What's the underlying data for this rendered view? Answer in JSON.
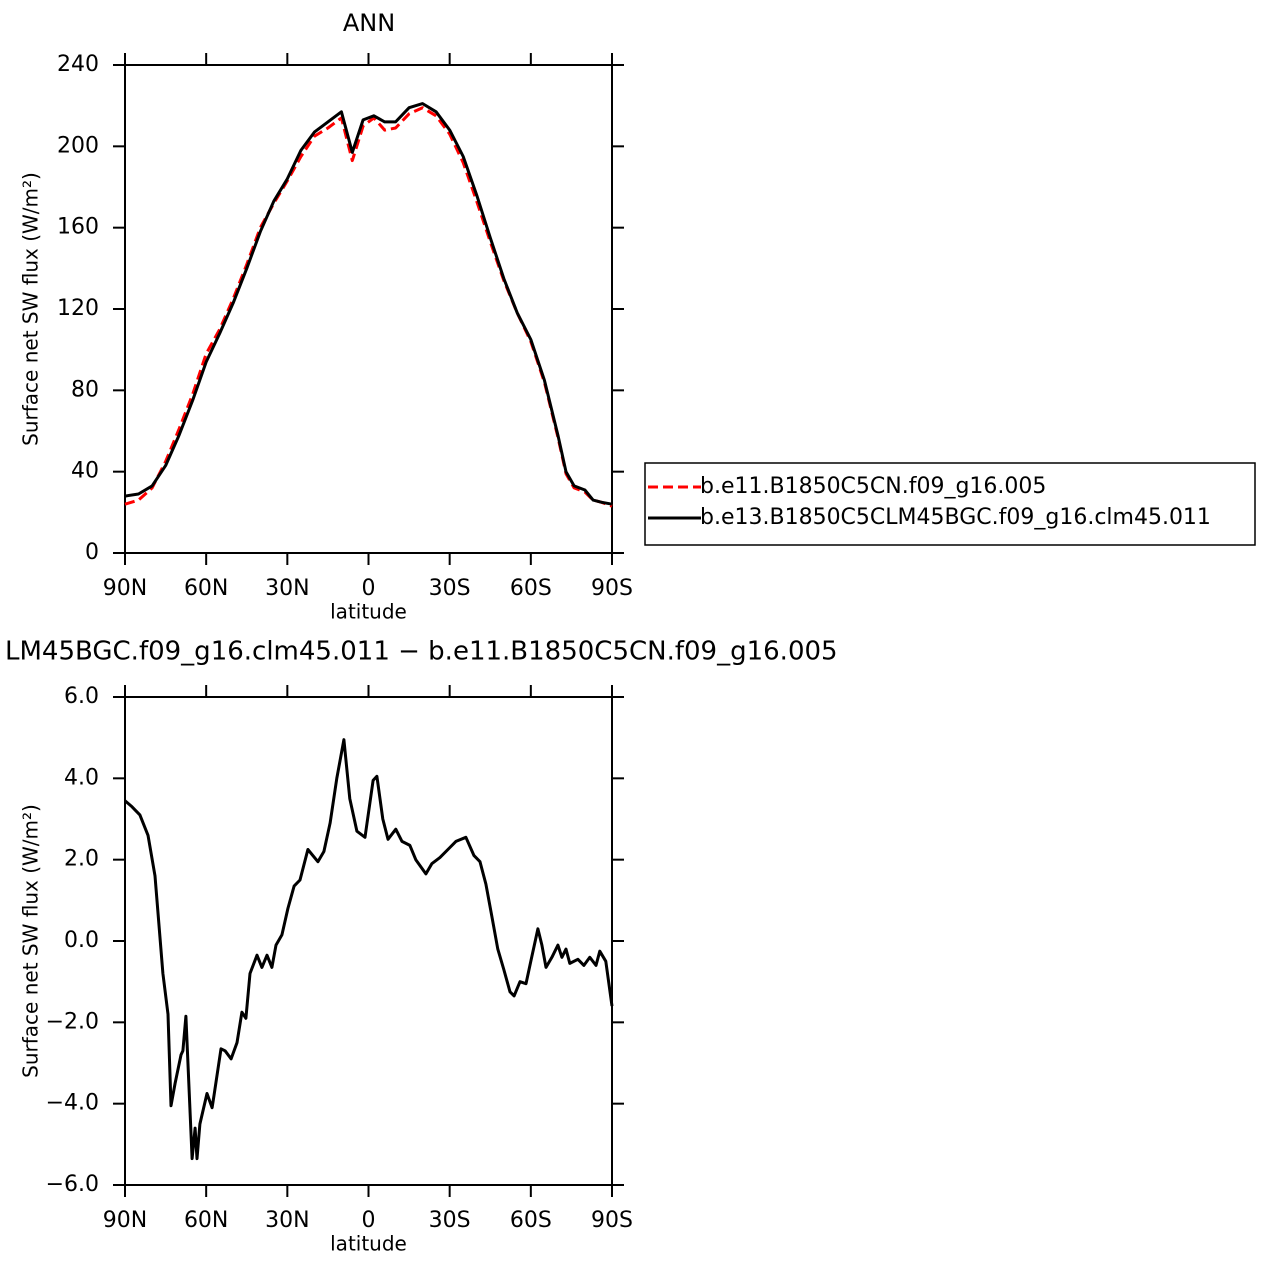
{
  "chart_data": [
    {
      "type": "line",
      "title": "ANN",
      "xlabel": "latitude",
      "ylabel": "Surface net SW flux (W/m²)",
      "x": [
        90,
        85,
        80,
        75,
        70,
        65,
        60,
        55,
        50,
        45,
        40,
        35,
        30,
        25,
        20,
        15,
        10,
        6,
        2,
        -2,
        -6,
        -10,
        -15,
        -20,
        -25,
        -30,
        -35,
        -40,
        -45,
        -50,
        -55,
        -60,
        -65,
        -70,
        -73,
        -76,
        -80,
        -83,
        -86,
        -90
      ],
      "series": [
        {
          "name": "b.e11.B1850C5CN.f09_g16.005",
          "color": "#ff0000",
          "dash": "dashed",
          "values": [
            24,
            26,
            32,
            45,
            61,
            78,
            98,
            110,
            125,
            142,
            160,
            172,
            183,
            195,
            205,
            209,
            214,
            193,
            210,
            214,
            208,
            209,
            216,
            219,
            215,
            206,
            192,
            173,
            153,
            134,
            118,
            104,
            84,
            57,
            39,
            32,
            30,
            26,
            25,
            23
          ]
        },
        {
          "name": "b.e13.B1850C5CLM45BGC.f09_g16.clm45.011",
          "color": "#000000",
          "dash": "solid",
          "values": [
            28,
            29,
            33,
            43,
            58,
            75,
            94,
            108,
            123,
            140,
            158,
            173,
            184,
            198,
            207,
            212,
            217,
            197,
            213,
            215,
            212,
            212,
            219,
            221,
            217,
            208,
            195,
            176,
            155,
            135,
            118,
            105,
            85,
            58,
            40,
            33,
            31,
            26,
            25,
            24
          ]
        }
      ],
      "xlim": [
        90,
        -90
      ],
      "xticks": [
        {
          "value": 90,
          "label": "90N"
        },
        {
          "value": 60,
          "label": "60N"
        },
        {
          "value": 30,
          "label": "30N"
        },
        0,
        {
          "value": -30,
          "label": "30S"
        },
        {
          "value": -60,
          "label": "60S"
        },
        {
          "value": -90,
          "label": "90S"
        }
      ],
      "ylim": [
        0,
        240
      ],
      "yticks": [
        0,
        40,
        80,
        120,
        160,
        200,
        240
      ],
      "legend": "right"
    },
    {
      "type": "line",
      "title": "LM45BGC.f09_g16.clm45.011 − b.e11.B1850C5CN.f09_g16.005",
      "xlabel": "latitude",
      "ylabel": "Surface net SW flux (W/m²)",
      "x": [
        90,
        87.4,
        84.5,
        81.5,
        78.9,
        76,
        74.1,
        73,
        71.5,
        69.3,
        68.6,
        67.5,
        65.2,
        64.1,
        63.4,
        62.3,
        59.7,
        57.8,
        57.1,
        54.5,
        53,
        50.8,
        48.6,
        46.8,
        45.3,
        43.8,
        41.2,
        39.4,
        37.5,
        35.7,
        34.2,
        32,
        29.8,
        27.5,
        25.3,
        22.4,
        18.7,
        16.5,
        14.2,
        11.7,
        9.1,
        6.9,
        4.3,
        1.3,
        -1.7,
        -3.1,
        -5.3,
        -7.2,
        -10.1,
        -12.4,
        -15.3,
        -17.5,
        -21.2,
        -23.4,
        -26.4,
        -30.1,
        -32.3,
        -36,
        -39,
        -41.2,
        -43.4,
        -45.6,
        -47.8,
        -50,
        -52.3,
        -53.8,
        -56,
        -58.2,
        -60,
        -62.6,
        -64.1,
        -65.6,
        -67.8,
        -70,
        -71.5,
        -73,
        -74.4,
        -77.4,
        -79.6,
        -81.8,
        -84.1,
        -85.5,
        -87.7,
        -90
      ],
      "series": [
        {
          "color": "#000000",
          "dash": "solid",
          "values": [
            3.45,
            3.3,
            3.1,
            2.6,
            1.6,
            -0.8,
            -1.8,
            -4.05,
            -3.5,
            -2.8,
            -2.7,
            -1.85,
            -5.35,
            -4.6,
            -5.35,
            -4.5,
            -3.75,
            -4.1,
            -3.8,
            -2.65,
            -2.7,
            -2.9,
            -2.5,
            -1.75,
            -1.9,
            -0.8,
            -0.35,
            -0.65,
            -0.35,
            -0.65,
            -0.1,
            0.15,
            0.8,
            1.35,
            1.5,
            2.25,
            1.95,
            2.2,
            2.9,
            4.0,
            4.95,
            3.5,
            2.7,
            2.55,
            3.95,
            4.05,
            3.0,
            2.5,
            2.75,
            2.45,
            2.35,
            2.0,
            1.65,
            1.9,
            2.05,
            2.3,
            2.45,
            2.55,
            2.1,
            1.95,
            1.4,
            0.6,
            -0.2,
            -0.7,
            -1.25,
            -1.35,
            -1.0,
            -1.05,
            -0.5,
            0.3,
            -0.1,
            -0.65,
            -0.4,
            -0.1,
            -0.4,
            -0.2,
            -0.55,
            -0.45,
            -0.6,
            -0.4,
            -0.6,
            -0.25,
            -0.5,
            -1.6
          ]
        }
      ],
      "xlim": [
        90,
        -90
      ],
      "xticks": [
        {
          "value": 90,
          "label": "90N"
        },
        {
          "value": 60,
          "label": "60N"
        },
        {
          "value": 30,
          "label": "30N"
        },
        0,
        {
          "value": -30,
          "label": "30S"
        },
        {
          "value": -60,
          "label": "60S"
        },
        {
          "value": -90,
          "label": "90S"
        }
      ],
      "ylim": [
        -6,
        6
      ],
      "yticks": [
        {
          "value": -6,
          "label": "−6.0"
        },
        {
          "value": -4,
          "label": "−4.0"
        },
        {
          "value": -2,
          "label": "−2.0"
        },
        {
          "value": 0,
          "label": "0.0"
        },
        {
          "value": 2,
          "label": "2.0"
        },
        {
          "value": 4,
          "label": "4.0"
        },
        {
          "value": 6,
          "label": "6.0"
        }
      ]
    }
  ]
}
